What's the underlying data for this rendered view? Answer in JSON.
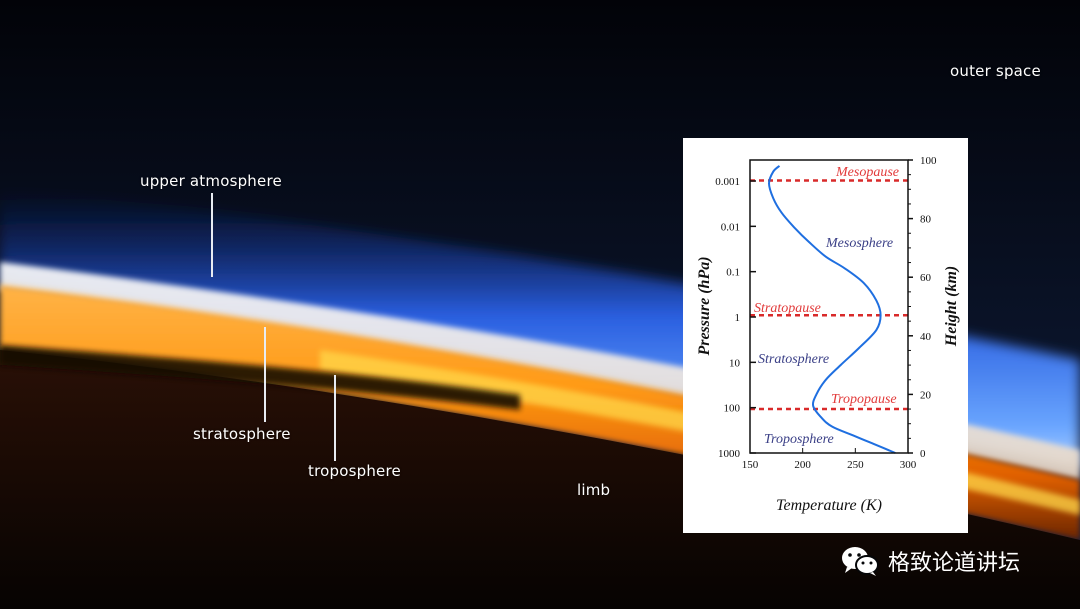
{
  "scene_labels": {
    "outer_space": "outer space",
    "upper_atmosphere": "upper atmosphere",
    "stratosphere": "stratosphere",
    "troposphere": "troposphere",
    "limb": "limb"
  },
  "chart_data": {
    "type": "line",
    "xlabel": "Temperature (K)",
    "ylabel_left": "Pressure (hPa)",
    "ylabel_right": "Height (km)",
    "xlim": [
      150,
      300
    ],
    "x_ticks": [
      "150",
      "200",
      "250",
      "300"
    ],
    "pressure_ticks": [
      "0.001",
      "0.01",
      "0.1",
      "1",
      "10",
      "100",
      "1000"
    ],
    "height_ticks": [
      "0",
      "20",
      "40",
      "60",
      "80",
      "100"
    ],
    "ylim_km": [
      0,
      100
    ],
    "series": [
      {
        "temperature_K": [
          288,
          268,
          248,
          228,
          218,
          210,
          213,
          222,
          236,
          254,
          270,
          274,
          270,
          258,
          240,
          222,
          206,
          192,
          180,
          172,
          168,
          172,
          178
        ],
        "height_km": [
          0,
          3,
          6,
          9,
          12,
          16,
          20,
          25,
          30,
          36,
          42,
          47,
          52,
          58,
          63,
          67,
          72,
          77,
          82,
          87,
          92,
          96,
          98
        ]
      }
    ],
    "pause_lines": [
      {
        "label": "Mesopause",
        "height_km": 93
      },
      {
        "label": "Stratopause",
        "height_km": 47
      },
      {
        "label": "Tropopause",
        "height_km": 15
      }
    ],
    "layer_labels": [
      "Mesosphere",
      "Stratosphere",
      "Troposphere"
    ],
    "colors": {
      "profile": "#1f6fe0",
      "pause_line": "#d92a2a",
      "layer_label": "#3a3f86",
      "pause_label": "#e23b3b"
    }
  },
  "watermark": {
    "text": "格致论道讲坛",
    "icon": "wechat-icon"
  }
}
